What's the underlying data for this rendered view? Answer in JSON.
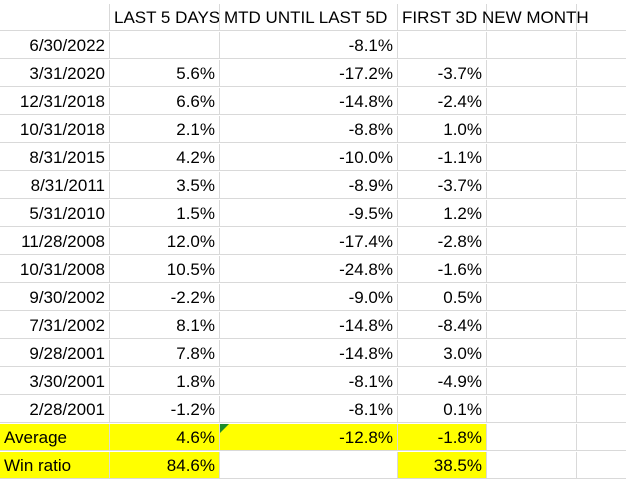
{
  "headers": [
    "",
    "LAST 5 DAYS",
    "MTD UNTIL LAST 5D",
    "FIRST 3D NEW MONTH"
  ],
  "rows": [
    {
      "date": "6/30/2022",
      "last5": "",
      "mtd": "-8.1%",
      "first3": ""
    },
    {
      "date": "3/31/2020",
      "last5": "5.6%",
      "mtd": "-17.2%",
      "first3": "-3.7%"
    },
    {
      "date": "12/31/2018",
      "last5": "6.6%",
      "mtd": "-14.8%",
      "first3": "-2.4%"
    },
    {
      "date": "10/31/2018",
      "last5": "2.1%",
      "mtd": "-8.8%",
      "first3": "1.0%"
    },
    {
      "date": "8/31/2015",
      "last5": "4.2%",
      "mtd": "-10.0%",
      "first3": "-1.1%"
    },
    {
      "date": "8/31/2011",
      "last5": "3.5%",
      "mtd": "-8.9%",
      "first3": "-3.7%"
    },
    {
      "date": "5/31/2010",
      "last5": "1.5%",
      "mtd": "-9.5%",
      "first3": "1.2%"
    },
    {
      "date": "11/28/2008",
      "last5": "12.0%",
      "mtd": "-17.4%",
      "first3": "-2.8%"
    },
    {
      "date": "10/31/2008",
      "last5": "10.5%",
      "mtd": "-24.8%",
      "first3": "-1.6%"
    },
    {
      "date": "9/30/2002",
      "last5": "-2.2%",
      "mtd": "-9.0%",
      "first3": "0.5%"
    },
    {
      "date": "7/31/2002",
      "last5": "8.1%",
      "mtd": "-14.8%",
      "first3": "-8.4%"
    },
    {
      "date": "9/28/2001",
      "last5": "7.8%",
      "mtd": "-14.8%",
      "first3": "3.0%"
    },
    {
      "date": "3/30/2001",
      "last5": "1.8%",
      "mtd": "-8.1%",
      "first3": "-4.9%"
    },
    {
      "date": "2/28/2001",
      "last5": "-1.2%",
      "mtd": "-8.1%",
      "first3": "0.1%"
    }
  ],
  "summary": [
    {
      "label": "Average",
      "last5": "4.6%",
      "mtd": "-12.8%",
      "first3": "-1.8%",
      "mtd_highlight": true
    },
    {
      "label": "Win ratio",
      "last5": "84.6%",
      "mtd": "",
      "first3": "38.5%",
      "mtd_highlight": false
    }
  ],
  "colors": {
    "highlight": "#ffff00",
    "gridline": "#d9d9d9",
    "note_marker": "#1e8c2a"
  }
}
